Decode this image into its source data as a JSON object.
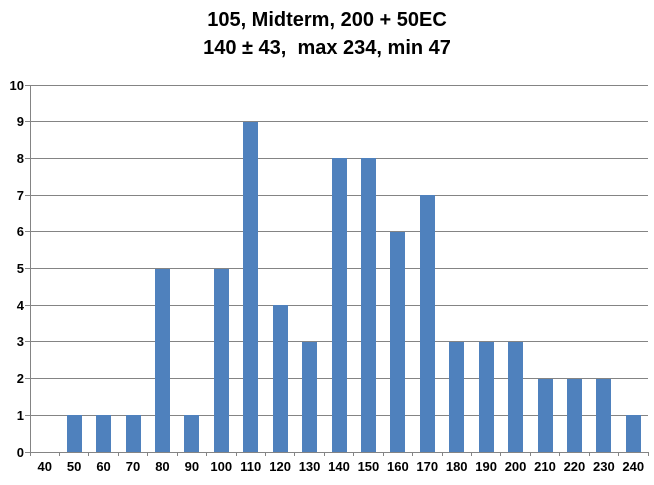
{
  "title": {
    "line1": "105, Midterm, 200 + 50EC",
    "line2": "140 ± 43,  max 234, min 47"
  },
  "chart_data": {
    "type": "bar",
    "title": "105, Midterm, 200 + 50EC",
    "subtitle": "140 ± 43,  max 234, min 47",
    "categories": [
      40,
      50,
      60,
      70,
      80,
      90,
      100,
      110,
      120,
      130,
      140,
      150,
      160,
      170,
      180,
      190,
      200,
      210,
      220,
      230,
      240
    ],
    "values": [
      0,
      1,
      1,
      1,
      5,
      1,
      5,
      9,
      4,
      3,
      8,
      8,
      6,
      7,
      3,
      3,
      3,
      2,
      2,
      2,
      1
    ],
    "xlabel": "",
    "ylabel": "",
    "ylim": [
      0,
      10
    ],
    "ytick_step": 1,
    "grid": true,
    "legend_position": "none",
    "colors": {
      "bar": "#4F81BD",
      "gridline": "#848484",
      "axis": "#848484",
      "label": "#000000",
      "background": "#FFFFFF"
    }
  }
}
